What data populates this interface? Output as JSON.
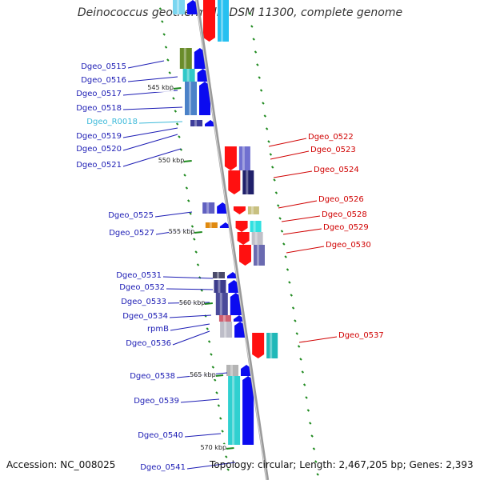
{
  "title": "Deinococcus geothermalis DSM 11300, complete genome",
  "footer": {
    "accession": "Accession: NC_008025",
    "topology": "Topology: circular; Length: 2,467,205 bp; Genes: 2,393"
  },
  "colors": {
    "label_left": "#1c1cb4",
    "label_rna": "#3bb9d9",
    "label_right": "#d00000",
    "forward_gene": "#0b0bf0",
    "reverse_gene": "#ff1010",
    "backbone": "#9a9a9a",
    "tick": "#1f8a1f"
  },
  "ticks": [
    "545 kbp",
    "550 kbp",
    "555 kbp",
    "560 kbp",
    "565 kbp",
    "570 kbp"
  ],
  "left_labels": [
    "Dgeo_0515",
    "Dgeo_0516",
    "Dgeo_0517",
    "Dgeo_0518",
    "Dgeo_R0018",
    "Dgeo_0519",
    "Dgeo_0520",
    "Dgeo_0521",
    "Dgeo_0525",
    "Dgeo_0527",
    "Dgeo_0531",
    "Dgeo_0532",
    "Dgeo_0533",
    "Dgeo_0534",
    "rpmB",
    "Dgeo_0536",
    "Dgeo_0538",
    "Dgeo_0539",
    "Dgeo_0540",
    "Dgeo_0541"
  ],
  "right_labels": [
    "Dgeo_0522",
    "Dgeo_0523",
    "Dgeo_0524",
    "Dgeo_0526",
    "Dgeo_0528",
    "Dgeo_0529",
    "Dgeo_0530",
    "Dgeo_0537"
  ]
}
